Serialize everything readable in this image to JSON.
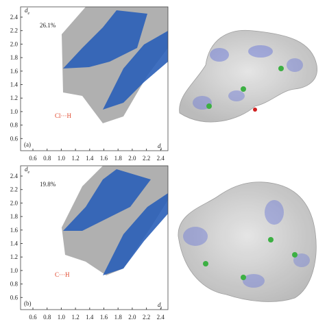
{
  "panels": [
    {
      "label": "(a)",
      "percent": "26.1%",
      "contact": "Cl···H",
      "y_axis": "d",
      "y_sub": "e",
      "x_axis": "d",
      "x_sub": "i",
      "xticks": [
        "0.6",
        "0.8",
        "1.0",
        "1.2",
        "1.4",
        "1.6",
        "1.8",
        "2.0",
        "2.2",
        "2.4"
      ],
      "yticks": [
        "2.4",
        "2.2",
        "2.0",
        "1.8",
        "1.6",
        "1.4",
        "1.2",
        "1.0",
        "0.8",
        "0.6"
      ]
    },
    {
      "label": "(b)",
      "percent": "19.8%",
      "contact": "C···H",
      "y_axis": "d",
      "y_sub": "e",
      "x_axis": "d",
      "x_sub": "i",
      "xticks": [
        "0.6",
        "0.8",
        "1.0",
        "1.2",
        "1.4",
        "1.6",
        "1.8",
        "2.0",
        "2.2",
        "2.4"
      ],
      "yticks": [
        "2.4",
        "2.2",
        "2.0",
        "1.8",
        "1.6",
        "1.4",
        "1.2",
        "1.0",
        "0.8",
        "0.6"
      ]
    }
  ]
}
